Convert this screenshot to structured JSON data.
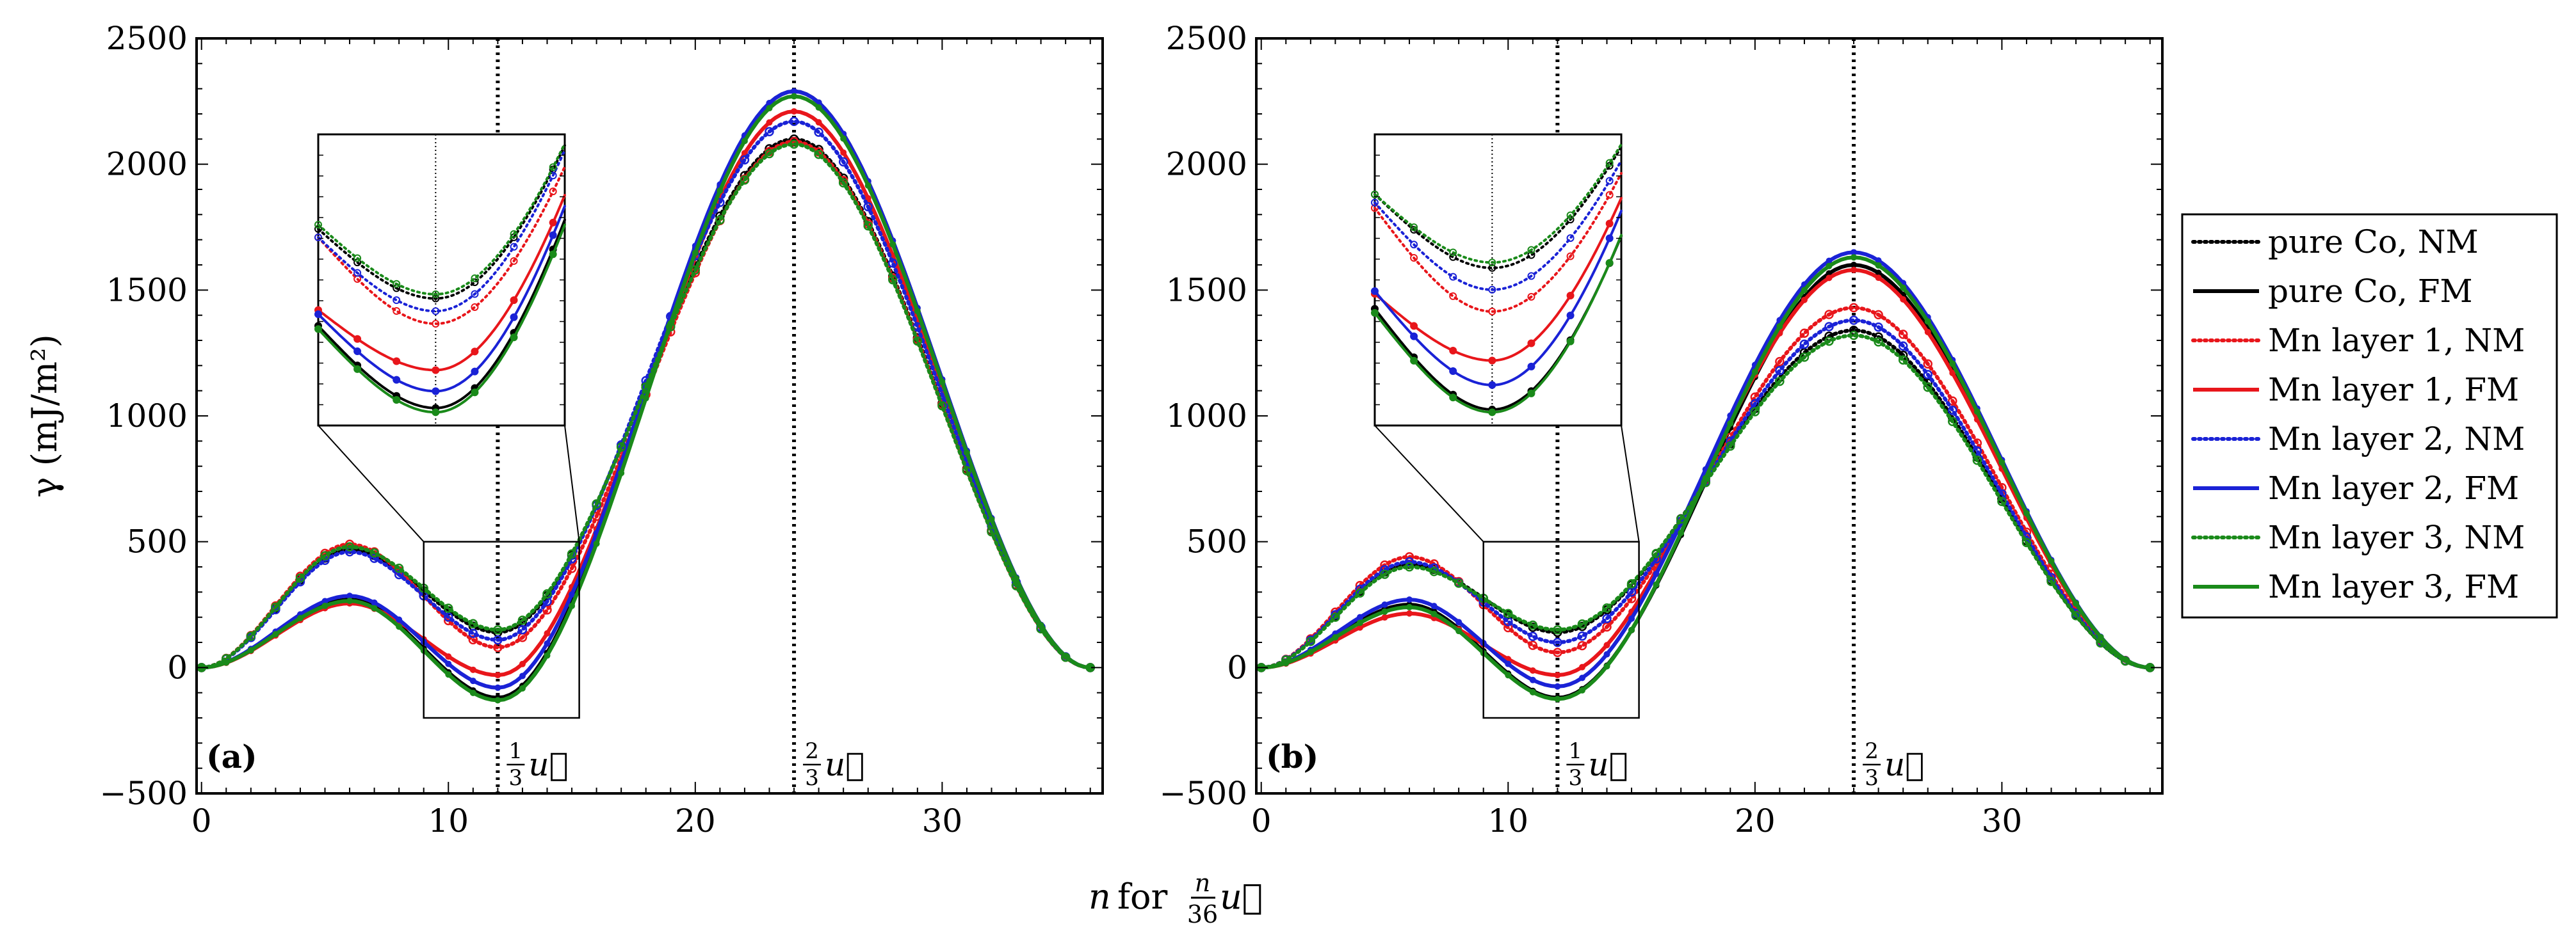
{
  "figure": {
    "ylabel": "γ (mJ/m²)",
    "xlabel_n": "n",
    "xlabel_for": "for",
    "xlabel_frac_num": "n",
    "xlabel_frac_den": "36",
    "xlabel_vec": "u⃗",
    "vline_third": {
      "num": "1",
      "den": "3",
      "vec": "u⃗"
    },
    "vline_two_thirds": {
      "num": "2",
      "den": "3",
      "vec": "u⃗"
    }
  },
  "legend": {
    "entries": [
      {
        "label": "pure Co, NM",
        "color": "#000000",
        "style": "dotted"
      },
      {
        "label": "pure Co, FM",
        "color": "#000000",
        "style": "solid"
      },
      {
        "label": "Mn layer 1, NM",
        "color": "#e8161b",
        "style": "dotted"
      },
      {
        "label": "Mn layer 1, FM",
        "color": "#e8161b",
        "style": "solid"
      },
      {
        "label": "Mn layer 2, NM",
        "color": "#1a22d6",
        "style": "dotted"
      },
      {
        "label": "Mn layer 2, FM",
        "color": "#1a22d6",
        "style": "solid"
      },
      {
        "label": "Mn layer 3, NM",
        "color": "#1a8a1a",
        "style": "dotted"
      },
      {
        "label": "Mn layer 3, FM",
        "color": "#1a8a1a",
        "style": "solid"
      }
    ]
  },
  "chart_data": [
    {
      "type": "line",
      "panel_label": "(a)",
      "xlim": [
        -0.2,
        36.5
      ],
      "ylim": [
        -500,
        2500
      ],
      "xticks": [
        0,
        10,
        20,
        30
      ],
      "yticks": [
        -500,
        0,
        500,
        1000,
        1500,
        2000,
        2500
      ],
      "xtick_labels": [
        "0",
        "10",
        "20",
        "30"
      ],
      "ytick_labels": [
        "−500",
        "0",
        "500",
        "1000",
        "1500",
        "2000",
        "2500"
      ],
      "vlines": [
        12,
        24
      ],
      "inset_box": {
        "x": [
          9,
          15.3
        ],
        "y": [
          -200,
          500
        ]
      },
      "series": [
        {
          "name": "pure Co, NM",
          "peak1": 470,
          "min": 140,
          "peak2": 2100
        },
        {
          "name": "pure Co, FM",
          "peak1": 270,
          "min": -120,
          "peak2": 2290
        },
        {
          "name": "Mn layer 1, NM",
          "peak1": 490,
          "min": 80,
          "peak2": 2090
        },
        {
          "name": "Mn layer 1, FM",
          "peak1": 255,
          "min": -30,
          "peak2": 2210
        },
        {
          "name": "Mn layer 2, NM",
          "peak1": 460,
          "min": 110,
          "peak2": 2170
        },
        {
          "name": "Mn layer 2, FM",
          "peak1": 285,
          "min": -80,
          "peak2": 2290
        },
        {
          "name": "Mn layer 3, NM",
          "peak1": 480,
          "min": 150,
          "peak2": 2080
        },
        {
          "name": "Mn layer 3, FM",
          "peak1": 265,
          "min": -130,
          "peak2": 2270
        }
      ]
    },
    {
      "type": "line",
      "panel_label": "(b)",
      "xlim": [
        -0.2,
        36.5
      ],
      "ylim": [
        -500,
        2500
      ],
      "xticks": [
        0,
        10,
        20,
        30
      ],
      "yticks": [
        -500,
        0,
        500,
        1000,
        1500,
        2000,
        2500
      ],
      "xtick_labels": [
        "0",
        "10",
        "20",
        "30"
      ],
      "ytick_labels": [
        "−500",
        "0",
        "500",
        "1000",
        "1500",
        "2000",
        "2500"
      ],
      "vlines": [
        12,
        24
      ],
      "inset_box": {
        "x": [
          9,
          15.3
        ],
        "y": [
          -200,
          500
        ]
      },
      "series": [
        {
          "name": "pure Co, NM",
          "peak1": 410,
          "min": 140,
          "peak2": 1340
        },
        {
          "name": "pure Co, FM",
          "peak1": 250,
          "min": -120,
          "peak2": 1600
        },
        {
          "name": "Mn layer 1, NM",
          "peak1": 440,
          "min": 60,
          "peak2": 1430
        },
        {
          "name": "Mn layer 1, FM",
          "peak1": 215,
          "min": -30,
          "peak2": 1580
        },
        {
          "name": "Mn layer 2, NM",
          "peak1": 420,
          "min": 100,
          "peak2": 1380
        },
        {
          "name": "Mn layer 2, FM",
          "peak1": 270,
          "min": -75,
          "peak2": 1650
        },
        {
          "name": "Mn layer 3, NM",
          "peak1": 400,
          "min": 150,
          "peak2": 1320
        },
        {
          "name": "Mn layer 3, FM",
          "peak1": 240,
          "min": -125,
          "peak2": 1630
        }
      ]
    }
  ]
}
